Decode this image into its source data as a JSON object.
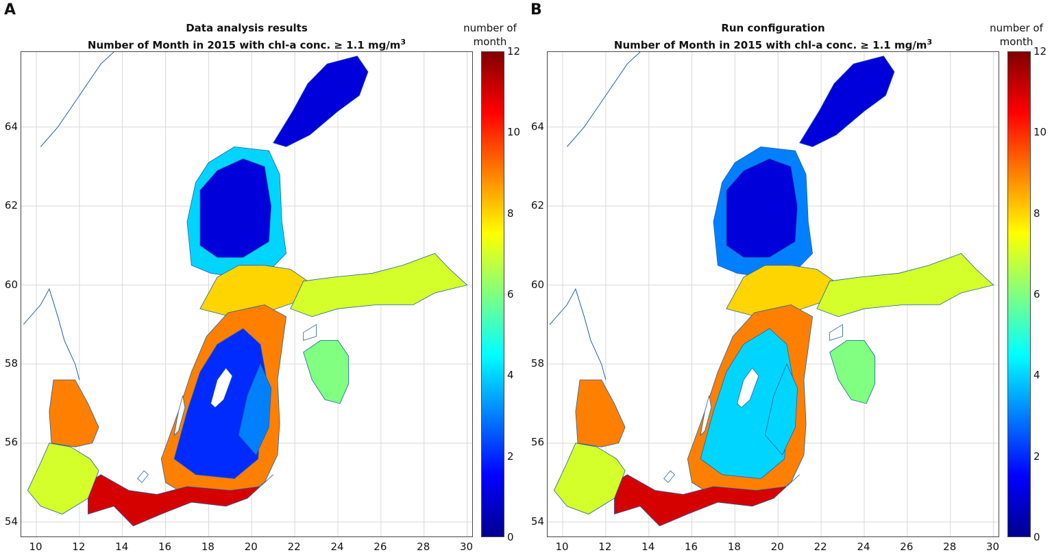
{
  "colorscale": [
    "#00008f",
    "#0000ff",
    "#0080ff",
    "#00ffff",
    "#80ff80",
    "#ffff00",
    "#ff8000",
    "#ff0000",
    "#800000"
  ],
  "axes": {
    "x_ticks": [
      "10",
      "12",
      "14",
      "16",
      "18",
      "20",
      "22",
      "24",
      "26",
      "28",
      "30"
    ],
    "y_ticks": [
      "64",
      "62",
      "60",
      "58",
      "56",
      "54"
    ],
    "lon_range": [
      9.3,
      30.3
    ],
    "lat_range": [
      53.6,
      65.9
    ]
  },
  "colorbar": {
    "label_line1": "number of",
    "label_line2": "month",
    "ticks": [
      "12",
      "10",
      "8",
      "6",
      "4",
      "2",
      "0"
    ],
    "range": [
      0,
      12
    ]
  },
  "panels": [
    {
      "letter": "A",
      "title": "Data analysis results",
      "subtitle_main": "Number of Month in 2015 with chl-a conc. ≥ 1.1 mg/m",
      "subtitle_sup": "3",
      "region_values": {
        "bothnian_bay": 1,
        "bothnian_sea": 1,
        "bothnian_sea_coast": 4,
        "aland_archipelago": 8,
        "gulf_of_finland": 7,
        "gulf_of_riga": 6,
        "baltic_proper_central": 2,
        "baltic_proper_east": 3,
        "baltic_proper_coast": 9,
        "southern_coast": 11,
        "kattegat": 9,
        "danish_straits": 7
      }
    },
    {
      "letter": "B",
      "title": "Run configuration",
      "subtitle_main": "Number of Month in 2015 with chl-a conc. ≥ 1.1 mg/m",
      "subtitle_sup": "3",
      "region_values": {
        "bothnian_bay": 1,
        "bothnian_sea": 1,
        "bothnian_sea_coast": 3,
        "aland_archipelago": 8,
        "gulf_of_finland": 7,
        "gulf_of_riga": 6,
        "baltic_proper_central": 4,
        "baltic_proper_east": 4,
        "baltic_proper_coast": 9,
        "southern_coast": 11,
        "kattegat": 9,
        "danish_straits": 7
      }
    }
  ]
}
